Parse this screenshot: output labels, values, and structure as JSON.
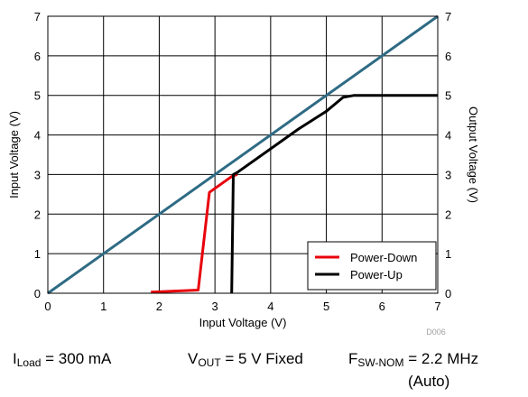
{
  "chart_data": {
    "type": "line",
    "title": "",
    "xlabel": "Input Voltage (V)",
    "ylabel_left": "Input Voltage (V)",
    "ylabel_right": "Output Voltage (V)",
    "xlim": [
      0,
      7
    ],
    "ylim": [
      0,
      7
    ],
    "xticks": [
      0,
      1,
      2,
      3,
      4,
      5,
      6,
      7
    ],
    "yticks": [
      0,
      1,
      2,
      3,
      4,
      5,
      6,
      7
    ],
    "grid": true,
    "legend_position": "bottom-right",
    "figure_id": "D006",
    "series": [
      {
        "name": "",
        "role": "input voltage reference",
        "color": "#2e6b84",
        "x": [
          0,
          7
        ],
        "y": [
          0,
          7
        ]
      },
      {
        "name": "Power-Down",
        "color": "#e8000b",
        "x": [
          1.85,
          2.7,
          2.9,
          3.3,
          3.4
        ],
        "y": [
          0.03,
          0.08,
          2.55,
          2.95,
          3.0
        ]
      },
      {
        "name": "Power-Up",
        "color": "#000000",
        "x": [
          3.3,
          3.33,
          3.4,
          4.0,
          4.5,
          5.0,
          5.3,
          5.5,
          6.0,
          7.0
        ],
        "y": [
          0.0,
          3.0,
          3.05,
          3.65,
          4.15,
          4.6,
          4.95,
          5.0,
          5.0,
          5.0
        ]
      }
    ]
  },
  "conditions": {
    "iload_sym": "I",
    "iload_sub": "Load",
    "iload_val": " = 300 mA",
    "vout_sym": "V",
    "vout_sub": "OUT",
    "vout_val": " = 5 V Fixed",
    "fsw_sym": "F",
    "fsw_sub": "SW-NOM",
    "fsw_val": " = 2.2 MHz",
    "fsw_mode": "(Auto)"
  }
}
